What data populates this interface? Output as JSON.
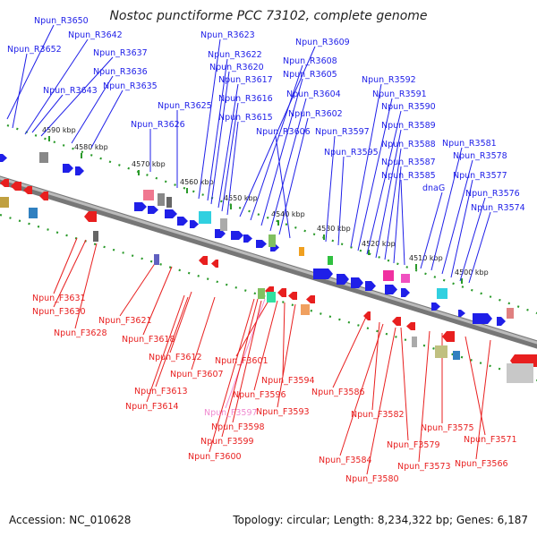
{
  "title": "Nostoc punctiforme PCC 73102, complete genome",
  "footer": {
    "accession": "Accession: NC_010628",
    "summary": "Topology: circular; Length: 8,234,322 bp; Genes: 6,187"
  },
  "colors": {
    "forward": "#1f1fe8",
    "reverse": "#e81f1f",
    "highlight": "#f08ad0",
    "axis": "#8a8a8a",
    "tick": "#2a9a2a"
  },
  "scale_ticks": [
    "4590 kbp",
    "4580 kbp",
    "4570 kbp",
    "4560 kbp",
    "4550 kbp",
    "4540 kbp",
    "4530 kbp",
    "4520 kbp",
    "4510 kbp",
    "4500 kbp"
  ],
  "forward_labels": [
    "Npun_R3650",
    "Npun_R3652",
    "Npun_R3642",
    "Npun_R3637",
    "Npun_R3636",
    "Npun_R3643",
    "Npun_R3635",
    "Npun_R3626",
    "Npun_R3625",
    "Npun_R3623",
    "Npun_R3622",
    "Npun_R3620",
    "Npun_R3617",
    "Npun_R3616",
    "Npun_R3615",
    "Npun_R3609",
    "Npun_R3608",
    "Npun_R3605",
    "Npun_R3604",
    "Npun_R3602",
    "Npun_R3606",
    "Npun_R3597",
    "Npun_R3595",
    "Npun_R3592",
    "Npun_R3591",
    "Npun_R3590",
    "Npun_R3589",
    "Npun_R3588",
    "Npun_R3587",
    "Npun_R3585",
    "dnaG",
    "Npun_R3581",
    "Npun_R3578",
    "Npun_R3577",
    "Npun_R3576",
    "Npun_R3574"
  ],
  "reverse_labels": [
    "Npun_F3631",
    "Npun_F3630",
    "Npun_F3628",
    "Npun_F3621",
    "Npun_F3618",
    "Npun_F3612",
    "Npun_F3607",
    "Npun_F3613",
    "Npun_F3614",
    "Npun_F3601",
    "Npun_F3594",
    "Npun_F3596",
    "Npun_F3593",
    "Npun_F3597",
    "Npun_F3598",
    "Npun_F3599",
    "Npun_F3600",
    "Npun_F3586",
    "Npun_F3582",
    "Npun_F3579",
    "Npun_F3584",
    "Npun_F3580",
    "Npun_F3575",
    "Npun_F3573",
    "Npun_F3571",
    "Npun_F3566"
  ],
  "highlighted_label": "Npun_F3597"
}
